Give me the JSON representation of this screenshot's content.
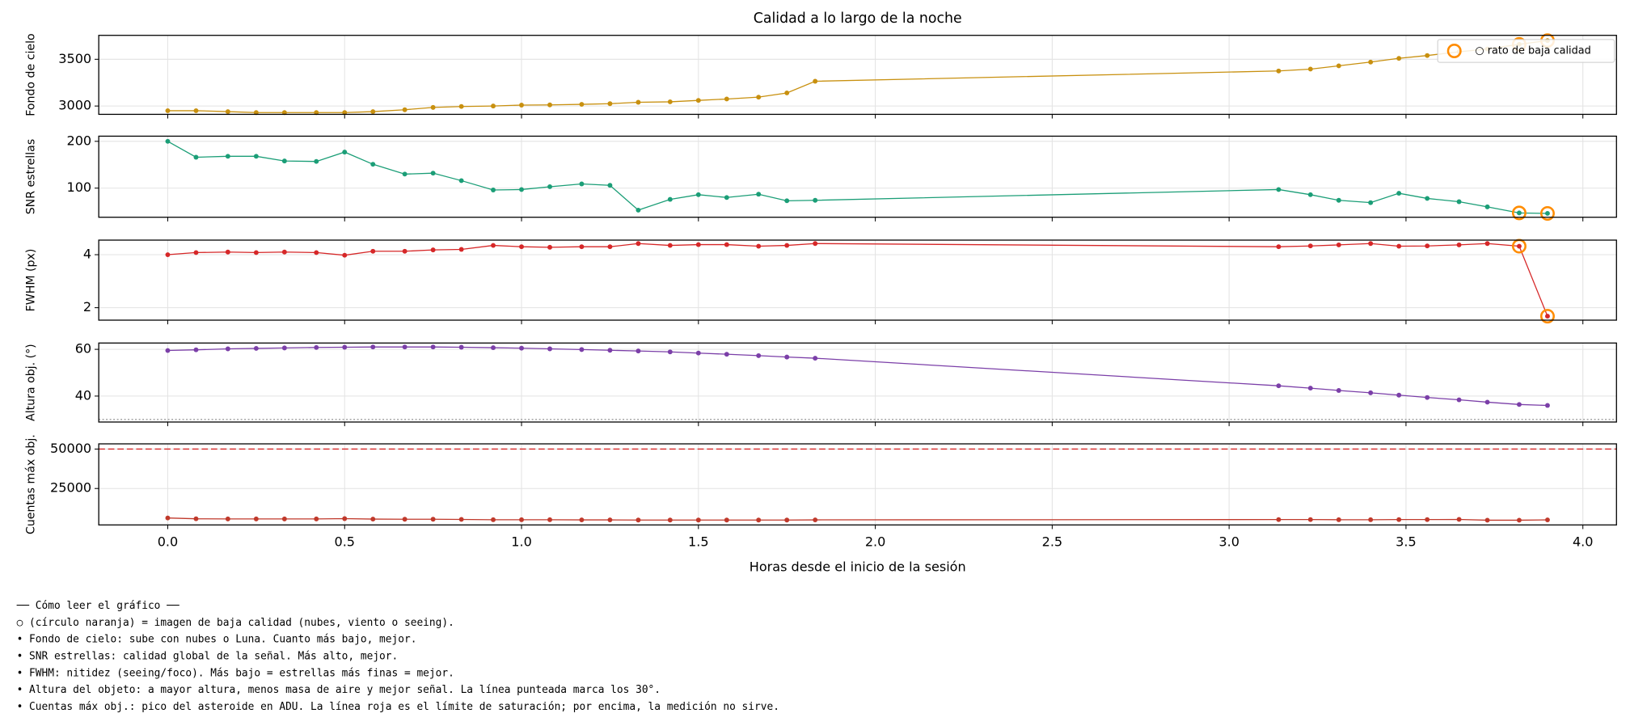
{
  "chart_data": [
    {
      "type": "line",
      "title": "Calidad a lo largo de la noche",
      "ylabel": "Fondo de cielo",
      "x": [
        0,
        0.08,
        0.17,
        0.25,
        0.33,
        0.42,
        0.5,
        0.58,
        0.67,
        0.75,
        0.83,
        0.92,
        1.0,
        1.08,
        1.17,
        1.25,
        1.33,
        1.42,
        1.5,
        1.58,
        1.67,
        1.75,
        1.83,
        3.14,
        3.23,
        3.31,
        3.4,
        3.48,
        3.56,
        3.65,
        3.73,
        3.82,
        3.9
      ],
      "xlim": [
        -0.195,
        4.095
      ],
      "xticks": [
        {
          "value": 0,
          "label": "0.0"
        },
        0.5,
        {
          "value": 1,
          "label": "1.0"
        },
        1.5,
        {
          "value": 2,
          "label": "2.0"
        },
        2.5,
        {
          "value": 3,
          "label": "3.0"
        },
        3.5,
        {
          "value": 4,
          "label": "4.0"
        }
      ],
      "ylim": [
        2911,
        3756
      ],
      "yticks": [
        3000,
        3500
      ],
      "grid": true,
      "legend": "upper right",
      "series": [
        {
          "color": "#c8900f",
          "marker": "dot",
          "values": [
            2950,
            2950,
            2940,
            2930,
            2930,
            2930,
            2930,
            2940,
            2960,
            2985,
            2995,
            3000,
            3010,
            3012,
            3018,
            3025,
            3040,
            3045,
            3060,
            3075,
            3095,
            3140,
            3265,
            3375,
            3395,
            3430,
            3470,
            3510,
            3540,
            3580,
            3610,
            3660,
            3700
          ]
        },
        {
          "name": "○ rato de baja calidad",
          "color": "#ff8c00",
          "marker": "ring",
          "line": false,
          "values": [
            null,
            null,
            null,
            null,
            null,
            null,
            null,
            null,
            null,
            null,
            null,
            null,
            null,
            null,
            null,
            null,
            null,
            null,
            null,
            null,
            null,
            null,
            null,
            null,
            null,
            null,
            null,
            null,
            null,
            null,
            null,
            3660,
            3700
          ]
        }
      ]
    },
    {
      "type": "line",
      "ylabel": "SNR estrellas",
      "x": [
        0,
        0.08,
        0.17,
        0.25,
        0.33,
        0.42,
        0.5,
        0.58,
        0.67,
        0.75,
        0.83,
        0.92,
        1.0,
        1.08,
        1.17,
        1.25,
        1.33,
        1.42,
        1.5,
        1.58,
        1.67,
        1.75,
        1.83,
        3.14,
        3.23,
        3.31,
        3.4,
        3.48,
        3.56,
        3.65,
        3.73,
        3.82,
        3.9
      ],
      "xlim": [
        -0.195,
        4.095
      ],
      "xticks": [
        0,
        0.5,
        1,
        1.5,
        2,
        2.5,
        3,
        3.5,
        4
      ],
      "ylim": [
        37.8,
        211
      ],
      "yticks": [
        100,
        200
      ],
      "grid": true,
      "series": [
        {
          "color": "#1b9e77",
          "marker": "dot",
          "values": [
            200,
            166,
            168,
            168,
            158,
            157,
            177,
            151,
            130,
            132,
            116,
            96,
            97,
            103,
            109,
            106,
            53,
            76,
            86,
            80,
            87,
            73,
            74,
            97,
            86,
            74,
            69,
            89,
            78,
            71,
            60,
            47,
            46
          ]
        },
        {
          "color": "#ff8c00",
          "marker": "ring",
          "line": false,
          "values": [
            null,
            null,
            null,
            null,
            null,
            null,
            null,
            null,
            null,
            null,
            null,
            null,
            null,
            null,
            null,
            null,
            null,
            null,
            null,
            null,
            null,
            null,
            null,
            null,
            null,
            null,
            null,
            null,
            null,
            null,
            null,
            47,
            46
          ]
        }
      ]
    },
    {
      "type": "line",
      "ylabel": "FWHM (px)",
      "x": [
        0,
        0.08,
        0.17,
        0.25,
        0.33,
        0.42,
        0.5,
        0.58,
        0.67,
        0.75,
        0.83,
        0.92,
        1.0,
        1.08,
        1.17,
        1.25,
        1.33,
        1.42,
        1.5,
        1.58,
        1.67,
        1.75,
        1.83,
        3.14,
        3.23,
        3.31,
        3.4,
        3.48,
        3.56,
        3.65,
        3.73,
        3.82,
        3.9
      ],
      "xlim": [
        -0.195,
        4.095
      ],
      "xticks": [
        0,
        0.5,
        1,
        1.5,
        2,
        2.5,
        3,
        3.5,
        4
      ],
      "ylim": [
        1.53,
        4.55
      ],
      "yticks": [
        2,
        4
      ],
      "grid": true,
      "series": [
        {
          "color": "#d62728",
          "marker": "dot",
          "values": [
            4.0,
            4.08,
            4.1,
            4.08,
            4.1,
            4.08,
            3.98,
            4.13,
            4.13,
            4.18,
            4.2,
            4.35,
            4.3,
            4.28,
            4.3,
            4.3,
            4.42,
            4.35,
            4.38,
            4.38,
            4.32,
            4.35,
            4.42,
            4.3,
            4.33,
            4.37,
            4.42,
            4.32,
            4.33,
            4.37,
            4.42,
            4.32,
            1.68
          ]
        },
        {
          "color": "#ff8c00",
          "marker": "ring",
          "line": false,
          "values": [
            null,
            null,
            null,
            null,
            null,
            null,
            null,
            null,
            null,
            null,
            null,
            null,
            null,
            null,
            null,
            null,
            null,
            null,
            null,
            null,
            null,
            null,
            null,
            null,
            null,
            null,
            null,
            null,
            null,
            null,
            null,
            4.32,
            1.68
          ]
        }
      ]
    },
    {
      "type": "line",
      "ylabel": "Altura obj. (°)",
      "x": [
        0,
        0.08,
        0.17,
        0.25,
        0.33,
        0.42,
        0.5,
        0.58,
        0.67,
        0.75,
        0.83,
        0.92,
        1.0,
        1.08,
        1.17,
        1.25,
        1.33,
        1.42,
        1.5,
        1.58,
        1.67,
        1.75,
        1.83,
        3.14,
        3.23,
        3.31,
        3.4,
        3.48,
        3.56,
        3.65,
        3.73,
        3.82,
        3.9
      ],
      "xlim": [
        -0.195,
        4.095
      ],
      "xticks": [
        0,
        0.5,
        1,
        1.5,
        2,
        2.5,
        3,
        3.5,
        4
      ],
      "ylim": [
        28.9,
        62.7
      ],
      "yticks": [
        40,
        60
      ],
      "grid": true,
      "hlines": [
        {
          "value": 30,
          "color": "#999999",
          "style": "dotted"
        }
      ],
      "series": [
        {
          "color": "#7b3fa8",
          "marker": "dot",
          "values": [
            59.5,
            59.8,
            60.2,
            60.4,
            60.6,
            60.8,
            60.9,
            61,
            61,
            61,
            60.9,
            60.7,
            60.5,
            60.2,
            59.9,
            59.6,
            59.3,
            58.9,
            58.4,
            57.9,
            57.3,
            56.7,
            56.2,
            44.4,
            43.4,
            42.4,
            41.4,
            40.4,
            39.4,
            38.4,
            37.4,
            36.4,
            36
          ]
        }
      ]
    },
    {
      "type": "line",
      "ylabel": "Cuentas máx obj.",
      "xlabel": "Horas desde el inicio de la sesión",
      "x": [
        0,
        0.08,
        0.17,
        0.25,
        0.33,
        0.42,
        0.5,
        0.58,
        0.67,
        0.75,
        0.83,
        0.92,
        1.0,
        1.08,
        1.17,
        1.25,
        1.33,
        1.42,
        1.5,
        1.58,
        1.67,
        1.75,
        1.83,
        3.14,
        3.23,
        3.31,
        3.4,
        3.48,
        3.56,
        3.65,
        3.73,
        3.82,
        3.9
      ],
      "xlim": [
        -0.195,
        4.095
      ],
      "xticks": [
        {
          "value": 0,
          "label": "0.0"
        },
        0.5,
        {
          "value": 1,
          "label": "1.0"
        },
        1.5,
        {
          "value": 2,
          "label": "2.0"
        },
        2.5,
        {
          "value": 3,
          "label": "3.0"
        },
        3.5,
        {
          "value": 4,
          "label": "4.0"
        }
      ],
      "ylim": [
        1900,
        53300
      ],
      "yticks": [
        25000,
        50000
      ],
      "grid": true,
      "hlines": [
        {
          "value": 50000,
          "color": "#d62728",
          "style": "dashed"
        }
      ],
      "series": [
        {
          "color": "#c0392b",
          "marker": "dot",
          "values": [
            6300,
            5800,
            5700,
            5700,
            5700,
            5700,
            5900,
            5600,
            5500,
            5500,
            5400,
            5200,
            5200,
            5200,
            5100,
            5100,
            5000,
            5000,
            5000,
            5000,
            5000,
            5000,
            5100,
            5300,
            5300,
            5200,
            5200,
            5300,
            5300,
            5400,
            4900,
            4900,
            5100
          ]
        }
      ]
    }
  ],
  "notes": [
    "── Cómo leer el gráfico ──",
    "○ (círculo naranja) = imagen de baja calidad (nubes, viento o seeing).",
    "• Fondo de cielo: sube con nubes o Luna. Cuanto más bajo, mejor.",
    "• SNR estrellas: calidad global de la señal. Más alto, mejor.",
    "• FWHM: nitidez (seeing/foco). Más bajo = estrellas más finas = mejor.",
    "• Altura del objeto: a mayor altura, menos masa de aire y mejor señal. La línea punteada marca los 30°.",
    "• Cuentas máx obj.: pico del asteroide en ADU. La línea roja es el límite de saturación; por encima, la medición no sirve."
  ]
}
